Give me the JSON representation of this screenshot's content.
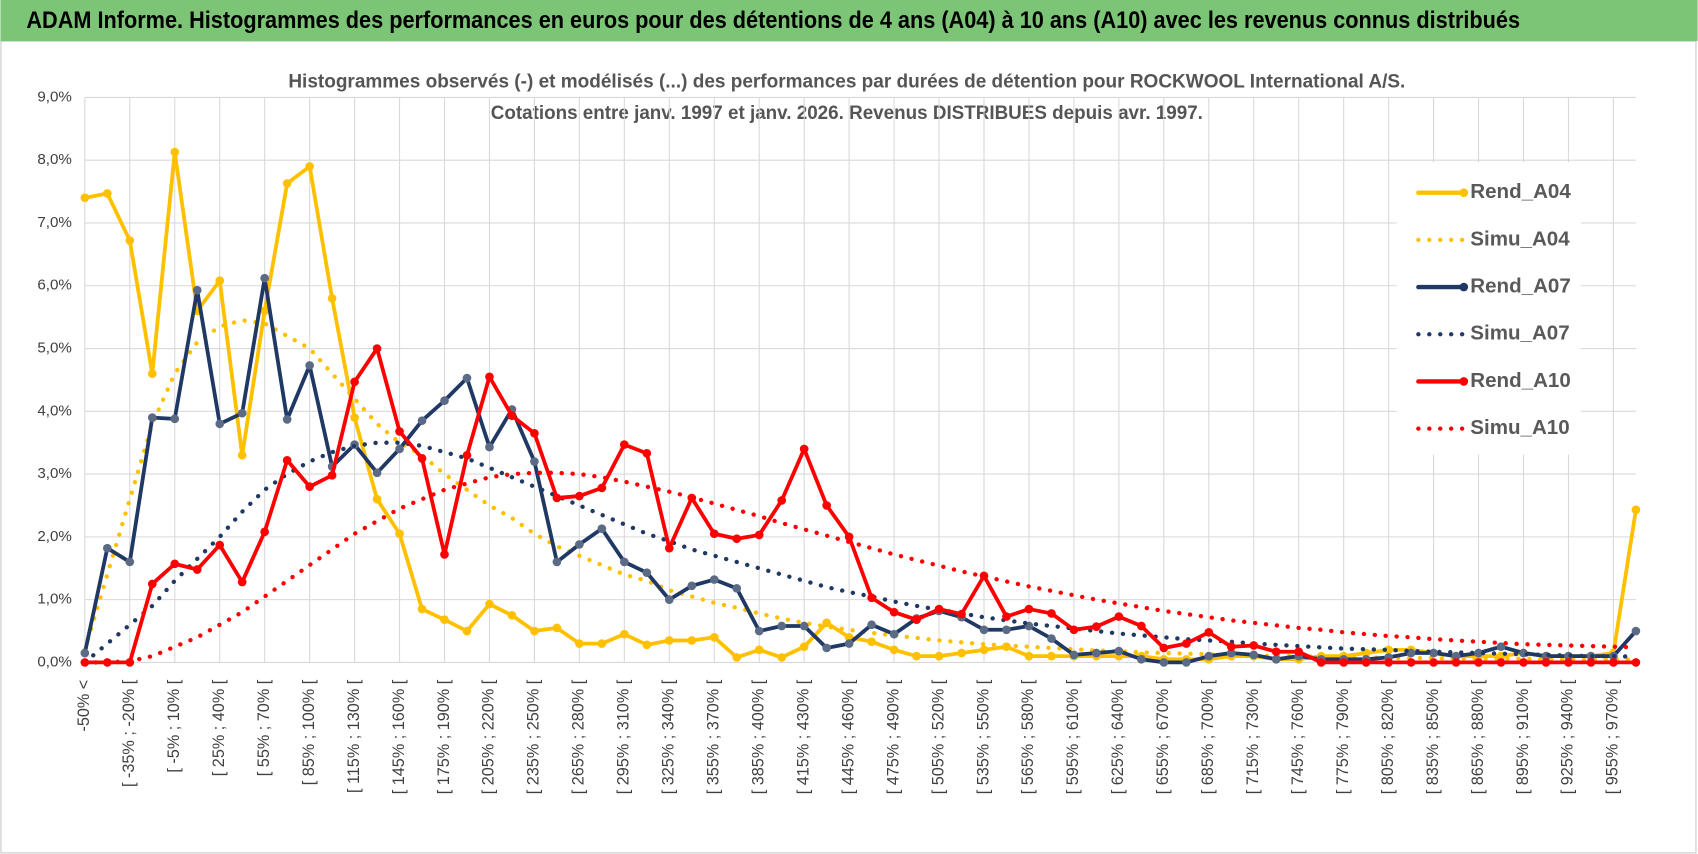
{
  "header": {
    "title": "ADAM Informe. Histogrammes des performances en euros pour des détentions de 4 ans (A04) à 10 ans (A10) avec les revenus connus distribués"
  },
  "chart_data": {
    "type": "line",
    "title": "Histogrammes observés (-) et modélisés (...)  des performances par durées de détention pour ROCKWOOL International A/S.",
    "subtitle": "Cotations entre janv. 1997 et janv. 2026. Revenus DISTRIBUES depuis avr. 1997.",
    "categories": [
      "-50% <",
      null,
      "[ -35% ; -20% [",
      null,
      "[ -5% ; 10% [",
      null,
      "[ 25% ; 40% [",
      null,
      "[ 55% ; 70% [",
      null,
      "[ 85% ; 100% [",
      null,
      "[ 115% ; 130% [",
      null,
      "[ 145% ; 160% [",
      null,
      "[ 175% ; 190% [",
      null,
      "[ 205% ; 220% [",
      null,
      "[ 235% ; 250% [",
      null,
      "[ 265% ; 280% [",
      null,
      "[ 295% ; 310% [",
      null,
      "[ 325% ; 340% [",
      null,
      "[ 355% ; 370% [",
      null,
      "[ 385% ; 400% [",
      null,
      "[ 415% ; 430% [",
      null,
      "[ 445% ; 460% [",
      null,
      "[ 475% ; 490% [",
      null,
      "[ 505% ; 520% [",
      null,
      "[ 535% ; 550% [",
      null,
      "[ 565% ; 580% [",
      null,
      "[ 595% ; 610% [",
      null,
      "[ 625% ; 640% [",
      null,
      "[ 655% ; 670% [",
      null,
      "[ 685% ; 700% [",
      null,
      "[ 715% ; 730% [",
      null,
      "[ 745% ; 760% [",
      null,
      "[ 775% ; 790% [",
      null,
      "[ 805% ; 820% [",
      null,
      "[ 835% ; 850% [",
      null,
      "[ 865% ; 880% [",
      null,
      "[ 895% ; 910% [",
      null,
      "[ 925% ; 940% [",
      null,
      "[ 955% ; 970% [",
      null
    ],
    "series": [
      {
        "name": "Rend_A04",
        "color": "#FFC000",
        "style": "solid",
        "markers": true,
        "values": [
          7.4,
          7.47,
          6.72,
          4.6,
          8.13,
          5.6,
          6.08,
          3.3,
          5.6,
          7.63,
          7.9,
          5.8,
          3.9,
          2.6,
          2.05,
          0.85,
          0.68,
          0.5,
          0.93,
          0.75,
          0.5,
          0.55,
          0.3,
          0.3,
          0.45,
          0.28,
          0.35,
          0.35,
          0.4,
          0.08,
          0.2,
          0.08,
          0.25,
          0.63,
          0.4,
          0.33,
          0.2,
          0.1,
          0.1,
          0.15,
          0.2,
          0.25,
          0.1,
          0.1,
          0.1,
          0.1,
          0.1,
          0.1,
          0.05,
          0.05,
          0.05,
          0.1,
          0.1,
          0.05,
          0.05,
          0.1,
          0.1,
          0.15,
          0.2,
          0.2,
          0.15,
          0.1,
          0.1,
          0.1,
          0.15,
          0.1,
          0.1,
          0.1,
          0.15,
          2.43
        ]
      },
      {
        "name": "Simu_A04",
        "color": "#FFC000",
        "style": "dotted",
        "markers": false,
        "values": [
          0.2,
          1.4,
          2.6,
          3.8,
          4.6,
          5.1,
          5.35,
          5.45,
          5.4,
          5.2,
          5.0,
          4.6,
          4.2,
          3.8,
          3.5,
          3.3,
          3.0,
          2.75,
          2.5,
          2.3,
          2.05,
          1.85,
          1.7,
          1.55,
          1.4,
          1.3,
          1.15,
          1.05,
          0.95,
          0.87,
          0.78,
          0.7,
          0.63,
          0.57,
          0.52,
          0.47,
          0.43,
          0.39,
          0.35,
          0.32,
          0.29,
          0.27,
          0.25,
          0.23,
          0.21,
          0.19,
          0.18,
          0.16,
          0.15,
          0.14,
          0.13,
          0.12,
          0.11,
          0.1,
          0.1,
          0.09,
          0.08,
          0.08,
          0.07,
          0.07,
          0.07,
          0.06,
          0.06,
          0.06,
          0.06,
          0.05,
          0.05,
          0.05,
          0.05,
          0.05
        ]
      },
      {
        "name": "Rend_A07",
        "color": "#1F3864",
        "style": "solid",
        "markers": true,
        "values": [
          0.15,
          1.82,
          1.6,
          3.9,
          3.88,
          5.93,
          3.8,
          3.97,
          6.12,
          3.87,
          4.73,
          3.12,
          3.47,
          3.02,
          3.4,
          3.85,
          4.17,
          4.53,
          3.43,
          4.03,
          3.2,
          1.6,
          1.88,
          2.13,
          1.6,
          1.43,
          1.0,
          1.22,
          1.32,
          1.18,
          0.5,
          0.58,
          0.58,
          0.23,
          0.3,
          0.6,
          0.45,
          0.7,
          0.82,
          0.72,
          0.52,
          0.52,
          0.58,
          0.38,
          0.12,
          0.15,
          0.18,
          0.05,
          0.0,
          0.0,
          0.1,
          0.15,
          0.12,
          0.05,
          0.1,
          0.05,
          0.05,
          0.05,
          0.08,
          0.15,
          0.15,
          0.1,
          0.15,
          0.25,
          0.15,
          0.1,
          0.1,
          0.1,
          0.1,
          0.5
        ]
      },
      {
        "name": "Simu_A07",
        "color": "#1F3864",
        "style": "dotted",
        "markers": false,
        "values": [
          0.0,
          0.3,
          0.6,
          0.9,
          1.3,
          1.65,
          2.0,
          2.4,
          2.75,
          3.0,
          3.2,
          3.35,
          3.45,
          3.5,
          3.5,
          3.45,
          3.35,
          3.25,
          3.1,
          2.95,
          2.8,
          2.65,
          2.5,
          2.35,
          2.2,
          2.05,
          1.93,
          1.8,
          1.7,
          1.6,
          1.5,
          1.4,
          1.3,
          1.2,
          1.12,
          1.05,
          0.97,
          0.9,
          0.84,
          0.78,
          0.72,
          0.67,
          0.62,
          0.58,
          0.54,
          0.5,
          0.46,
          0.43,
          0.4,
          0.37,
          0.35,
          0.33,
          0.3,
          0.28,
          0.26,
          0.24,
          0.22,
          0.21,
          0.2,
          0.18,
          0.17,
          0.16,
          0.15,
          0.14,
          0.13,
          0.12,
          0.11,
          0.1,
          0.1,
          0.09
        ]
      },
      {
        "name": "Rend_A10",
        "color": "#FF0000",
        "style": "solid",
        "markers": true,
        "values": [
          0,
          0,
          0,
          1.25,
          1.57,
          1.48,
          1.87,
          1.28,
          2.08,
          3.22,
          2.8,
          2.98,
          4.47,
          5.0,
          3.68,
          3.25,
          1.72,
          3.3,
          4.55,
          3.93,
          3.65,
          2.62,
          2.65,
          2.78,
          3.47,
          3.33,
          1.82,
          2.62,
          2.05,
          1.97,
          2.03,
          2.58,
          3.4,
          2.5,
          2.0,
          1.03,
          0.8,
          0.68,
          0.85,
          0.77,
          1.38,
          0.73,
          0.85,
          0.78,
          0.52,
          0.57,
          0.73,
          0.58,
          0.23,
          0.3,
          0.48,
          0.25,
          0.27,
          0.17,
          0.17,
          0,
          0,
          0,
          0,
          0,
          0,
          0,
          0,
          0,
          0,
          0,
          0,
          0,
          0,
          0
        ]
      },
      {
        "name": "Simu_A10",
        "color": "#FF0000",
        "style": "dotted",
        "markers": false,
        "values": [
          0,
          0,
          0.02,
          0.1,
          0.25,
          0.4,
          0.6,
          0.8,
          1.05,
          1.3,
          1.55,
          1.8,
          2.05,
          2.25,
          2.45,
          2.6,
          2.75,
          2.85,
          2.95,
          3.0,
          3.02,
          3.02,
          3.0,
          2.95,
          2.88,
          2.8,
          2.72,
          2.63,
          2.53,
          2.43,
          2.33,
          2.22,
          2.12,
          2.02,
          1.92,
          1.82,
          1.72,
          1.63,
          1.54,
          1.45,
          1.37,
          1.29,
          1.21,
          1.14,
          1.07,
          1.0,
          0.94,
          0.88,
          0.82,
          0.77,
          0.72,
          0.67,
          0.63,
          0.59,
          0.55,
          0.52,
          0.48,
          0.45,
          0.42,
          0.4,
          0.37,
          0.35,
          0.33,
          0.31,
          0.29,
          0.28,
          0.27,
          0.26,
          0.25,
          0.24
        ]
      }
    ],
    "ylim": [
      0,
      9
    ],
    "yticks": [
      {
        "value": 0,
        "label": "0,0%"
      },
      {
        "value": 1,
        "label": "1,0%"
      },
      {
        "value": 2,
        "label": "2,0%"
      },
      {
        "value": 3,
        "label": "3,0%"
      },
      {
        "value": 4,
        "label": "4,0%"
      },
      {
        "value": 5,
        "label": "5,0%"
      },
      {
        "value": 6,
        "label": "6,0%"
      },
      {
        "value": 7,
        "label": "7,0%"
      },
      {
        "value": 8,
        "label": "8,0%"
      },
      {
        "value": 9,
        "label": "9,0%"
      }
    ],
    "grid": true,
    "legend": "right"
  }
}
